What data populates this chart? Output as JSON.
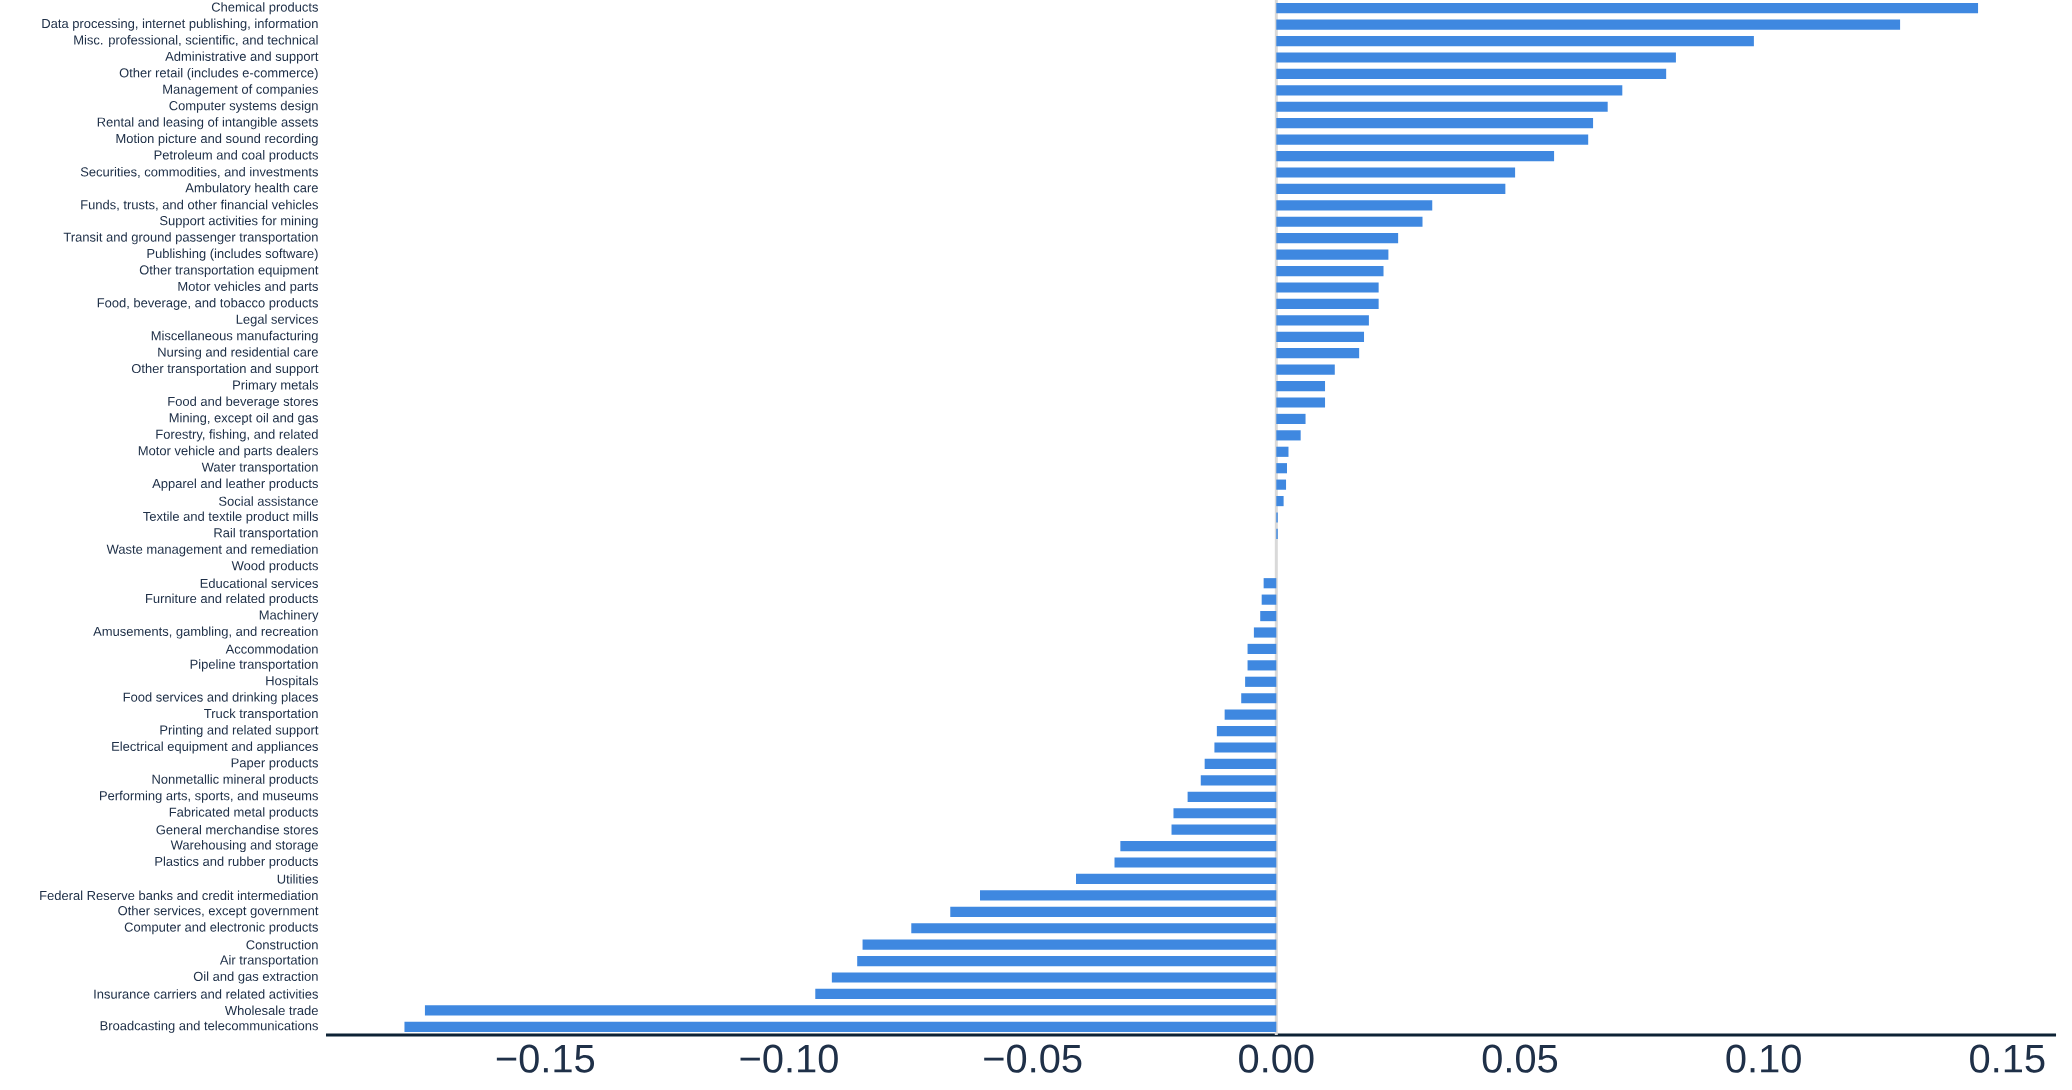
{
  "chart_data": {
    "type": "bar",
    "orientation": "horizontal",
    "categories": [
      "Chemical products",
      "Data processing, internet publishing, information",
      "Misc. professional, scientific, and technical",
      "Administrative and support",
      "Other retail (includes e-commerce)",
      "Management of companies",
      "Computer systems design",
      "Rental and leasing of intangible assets",
      "Motion picture and sound recording",
      "Petroleum and coal products",
      "Securities, commodities, and investments",
      "Ambulatory health care",
      "Funds, trusts, and other financial vehicles",
      "Support activities for mining",
      "Transit and ground passenger transportation",
      "Publishing (includes software)",
      "Other transportation equipment",
      "Motor vehicles and parts",
      "Food, beverage, and tobacco products",
      "Legal services",
      "Miscellaneous manufacturing",
      "Nursing and residential care",
      "Other transportation and support",
      "Primary metals",
      "Food and beverage stores",
      "Mining, except oil and gas",
      "Forestry, fishing, and related",
      "Motor vehicle and parts dealers",
      "Water transportation",
      "Apparel and leather products",
      "Social assistance",
      "Textile and textile product mills",
      "Rail transportation",
      "Waste management and remediation",
      "Wood products",
      "Educational services",
      "Furniture and related products",
      "Machinery",
      "Amusements, gambling, and recreation",
      "Accommodation",
      "Pipeline transportation",
      "Hospitals",
      "Food services and drinking places",
      "Truck transportation",
      "Printing and related support",
      "Electrical equipment and appliances",
      "Paper products",
      "Nonmetallic mineral products",
      "Performing arts, sports, and museums",
      "Fabricated metal products",
      "General merchandise stores",
      "Warehousing and storage",
      "Plastics and rubber products",
      "Utilities",
      "Federal Reserve banks and credit intermediation",
      "Other services, except government",
      "Computer and electronic products",
      "Construction",
      "Air transportation",
      "Oil and gas extraction",
      "Insurance carriers and related activities",
      "Wholesale trade",
      "Broadcasting and telecommunications"
    ],
    "values": [
      0.144,
      0.128,
      0.098,
      0.082,
      0.08,
      0.071,
      0.068,
      0.065,
      0.064,
      0.057,
      0.049,
      0.047,
      0.032,
      0.03,
      0.025,
      0.023,
      0.022,
      0.021,
      0.021,
      0.019,
      0.018,
      0.017,
      0.012,
      0.01,
      0.01,
      0.006,
      0.005,
      0.0025,
      0.0022,
      0.002,
      0.0015,
      0.0003,
      0.0003,
      0,
      0,
      -0.0026,
      -0.003,
      -0.0033,
      -0.0046,
      -0.0059,
      -0.0059,
      -0.0064,
      -0.0072,
      -0.0106,
      -0.0122,
      -0.0127,
      -0.0147,
      -0.0155,
      -0.0182,
      -0.0211,
      -0.0215,
      -0.032,
      -0.0332,
      -0.0411,
      -0.0608,
      -0.0669,
      -0.0749,
      -0.0849,
      -0.086,
      -0.0912,
      -0.0946,
      -0.1747,
      -0.1789
    ],
    "color": "#3f88e0",
    "xlim": [
      -0.195,
      0.16
    ],
    "xticks": [
      {
        "value": -0.15,
        "label": "−0.15"
      },
      {
        "value": -0.1,
        "label": "−0.10"
      },
      {
        "value": -0.05,
        "label": "−0.05"
      },
      {
        "value": 0,
        "label": "0.00"
      },
      {
        "value": 0.05,
        "label": "0.05"
      },
      {
        "value": 0.1,
        "label": "0.10"
      },
      {
        "value": 0.15,
        "label": "0.15"
      }
    ],
    "ref_lines": [
      {
        "axis": "x",
        "value": 0,
        "color": "#d9d9d9"
      }
    ]
  }
}
